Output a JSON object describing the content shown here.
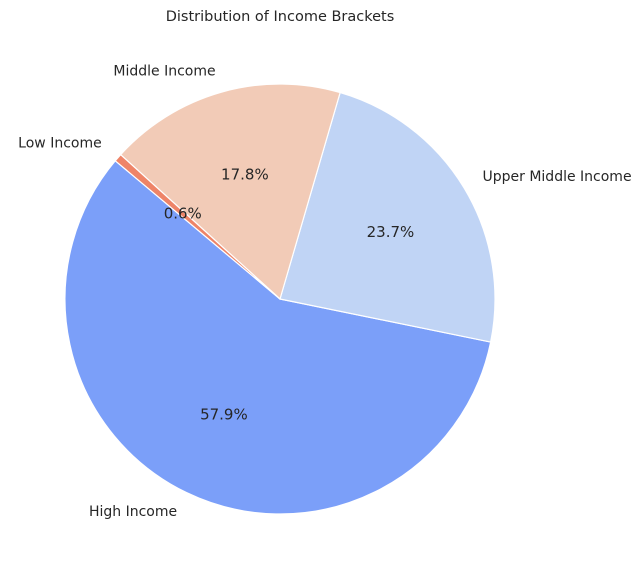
{
  "chart_data": {
    "type": "pie",
    "title": "Distribution of Income Brackets",
    "categories": [
      "High Income",
      "Upper Middle Income",
      "Middle Income",
      "Low Income"
    ],
    "values": [
      57.9,
      23.7,
      17.8,
      0.6
    ],
    "percent_labels": [
      "57.9%",
      "23.7%",
      "17.8%",
      "0.6%"
    ],
    "colors": [
      "#7b9ff9",
      "#c0d4f5",
      "#f2cbb7",
      "#ee8468"
    ],
    "start_angle_deg": 140,
    "direction": "counterclockwise",
    "legend": "none"
  }
}
